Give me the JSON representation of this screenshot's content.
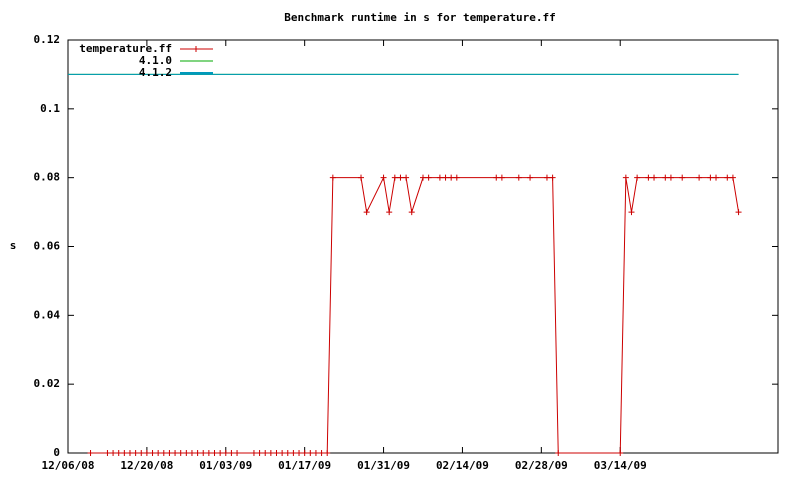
{
  "chart_data": {
    "type": "line",
    "title": "Benchmark runtime in s for temperature.ff",
    "ylabel": "s",
    "ylim": [
      0,
      0.12
    ],
    "yticks": [
      0,
      0.02,
      0.04,
      0.06,
      0.08,
      0.1,
      0.12
    ],
    "xlim": [
      "12/06/08",
      "04/11/09"
    ],
    "xticks": [
      "12/06/08",
      "12/20/08",
      "01/03/09",
      "01/17/09",
      "01/31/09",
      "02/14/09",
      "02/28/09",
      "03/14/09"
    ],
    "legend": "top-left",
    "series": [
      {
        "name": "temperature.ff",
        "color": "#cc0000",
        "markers": true,
        "x": [
          "12/10/08",
          "12/13/08",
          "12/14/08",
          "12/15/08",
          "12/16/08",
          "12/17/08",
          "12/18/08",
          "12/19/08",
          "12/20/08",
          "12/21/08",
          "12/22/08",
          "12/23/08",
          "12/24/08",
          "12/25/08",
          "12/26/08",
          "12/27/08",
          "12/28/08",
          "12/29/08",
          "12/30/08",
          "12/31/08",
          "01/01/09",
          "01/02/09",
          "01/03/09",
          "01/04/09",
          "01/05/09",
          "01/08/09",
          "01/09/09",
          "01/10/09",
          "01/11/09",
          "01/12/09",
          "01/13/09",
          "01/14/09",
          "01/15/09",
          "01/16/09",
          "01/17/09",
          "01/18/09",
          "01/19/09",
          "01/20/09",
          "01/21/09",
          "01/22/09",
          "01/27/09",
          "01/28/09",
          "01/31/09",
          "02/01/09",
          "02/02/09",
          "02/03/09",
          "02/04/09",
          "02/05/09",
          "02/07/09",
          "02/08/09",
          "02/10/09",
          "02/11/09",
          "02/12/09",
          "02/13/09",
          "02/20/09",
          "02/21/09",
          "02/24/09",
          "02/26/09",
          "03/01/09",
          "03/02/09",
          "03/03/09",
          "03/14/09",
          "03/15/09",
          "03/16/09",
          "03/17/09",
          "03/19/09",
          "03/20/09",
          "03/22/09",
          "03/23/09",
          "03/25/09",
          "03/28/09",
          "03/30/09",
          "03/31/09",
          "04/02/09",
          "04/03/09",
          "04/04/09"
        ],
        "values": [
          0,
          0,
          0,
          0,
          0,
          0,
          0,
          0,
          0,
          0,
          0,
          0,
          0,
          0,
          0,
          0,
          0,
          0,
          0,
          0,
          0,
          0,
          0,
          0,
          0,
          0,
          0,
          0,
          0,
          0,
          0,
          0,
          0,
          0,
          0,
          0,
          0,
          0,
          0,
          0.08,
          0.08,
          0.07,
          0.08,
          0.07,
          0.08,
          0.08,
          0.08,
          0.07,
          0.08,
          0.08,
          0.08,
          0.08,
          0.08,
          0.08,
          0.08,
          0.08,
          0.08,
          0.08,
          0.08,
          0.08,
          0,
          0,
          0.08,
          0.07,
          0.08,
          0.08,
          0.08,
          0.08,
          0.08,
          0.08,
          0.08,
          0.08,
          0.08,
          0.08,
          0.08,
          0.07
        ]
      },
      {
        "name": "4.1.0",
        "color": "#00aa00",
        "markers": false,
        "x": [
          "12/06/08",
          "04/04/09"
        ],
        "values": [
          0.11,
          0.11
        ]
      },
      {
        "name": "4.1.2",
        "color": "#0099bb",
        "markers": false,
        "x": [
          "12/06/08",
          "04/04/09"
        ],
        "values": [
          0.11,
          0.11
        ]
      }
    ]
  }
}
